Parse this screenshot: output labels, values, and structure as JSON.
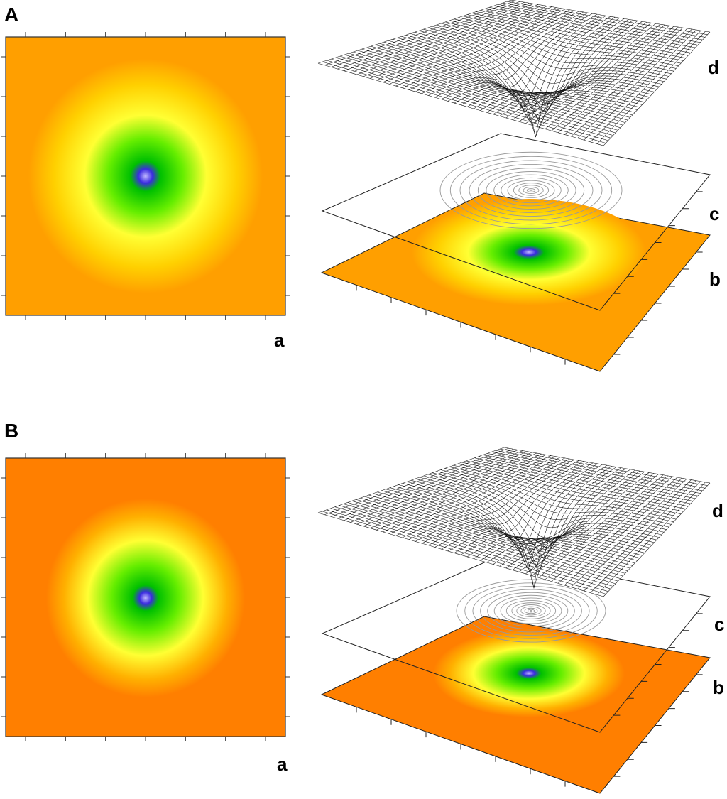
{
  "panels": [
    {
      "id": "A",
      "label": "A",
      "heatmap_label": "a",
      "labels3d": {
        "surface": "d",
        "contour": "c",
        "colormap": "b"
      },
      "colors": {
        "background": "#FF9F00",
        "ring": "#FFFF33",
        "mid": "#7CFC00",
        "inner": "#00C800",
        "core": "#3A2BE0",
        "center": "#A9A0FF"
      },
      "well_width": 0.42
    },
    {
      "id": "B",
      "label": "B",
      "heatmap_label": "a",
      "labels3d": {
        "surface": "d",
        "contour": "c",
        "colormap": "b"
      },
      "colors": {
        "background": "#FF7F00",
        "ring": "#FFFF33",
        "mid": "#7CFC00",
        "inner": "#00C800",
        "core": "#3A2BE0",
        "center": "#A9A0FF"
      },
      "well_width": 0.34
    }
  ]
}
